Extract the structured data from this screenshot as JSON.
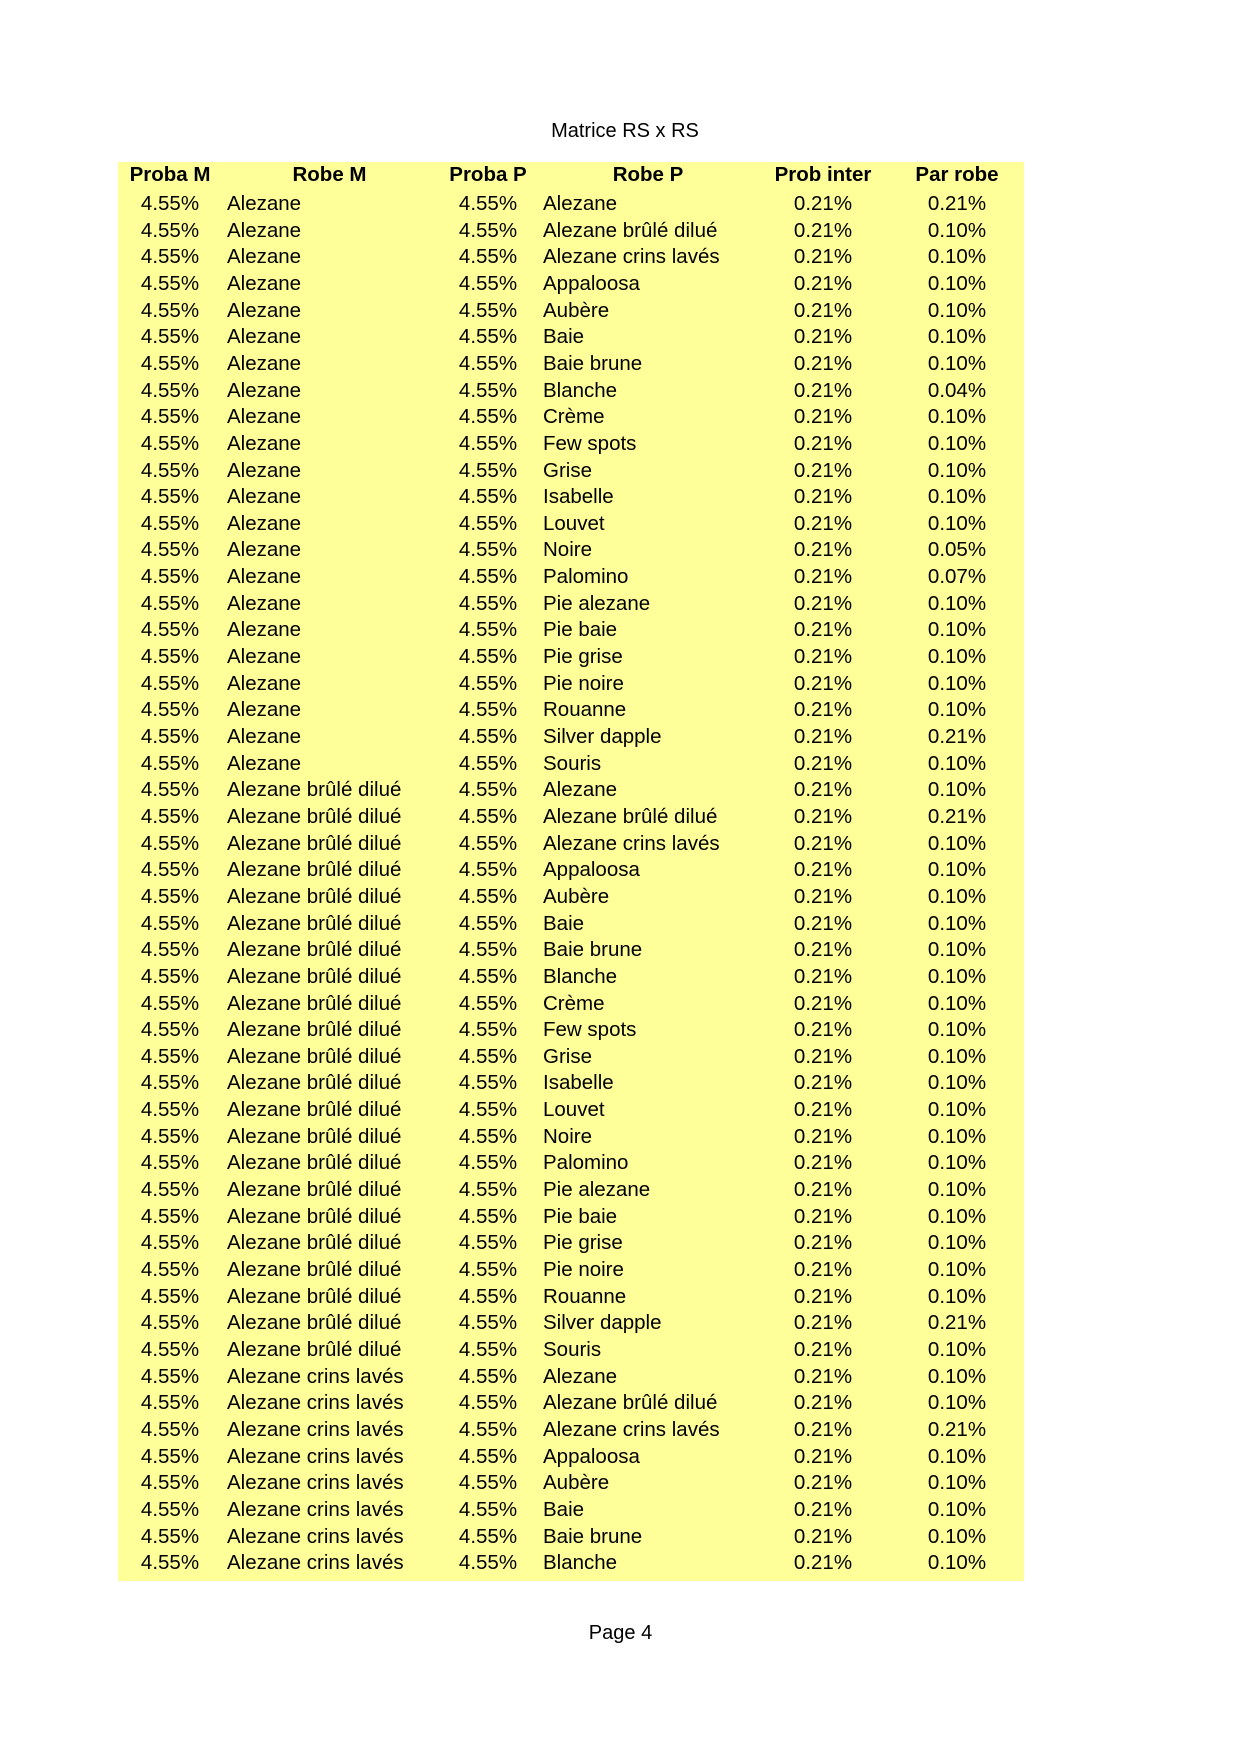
{
  "title": "Matrice RS x RS",
  "footer": "Page 4",
  "colors": {
    "sheet_background": "#ffff99"
  },
  "table": {
    "headers": [
      "Proba M",
      "Robe M",
      "Proba P",
      "Robe P",
      "Prob inter",
      "Par robe"
    ],
    "rows": [
      [
        "4.55%",
        "Alezane",
        "4.55%",
        "Alezane",
        "0.21%",
        "0.21%"
      ],
      [
        "4.55%",
        "Alezane",
        "4.55%",
        "Alezane brûlé dilué",
        "0.21%",
        "0.10%"
      ],
      [
        "4.55%",
        "Alezane",
        "4.55%",
        "Alezane crins lavés",
        "0.21%",
        "0.10%"
      ],
      [
        "4.55%",
        "Alezane",
        "4.55%",
        "Appaloosa",
        "0.21%",
        "0.10%"
      ],
      [
        "4.55%",
        "Alezane",
        "4.55%",
        "Aubère",
        "0.21%",
        "0.10%"
      ],
      [
        "4.55%",
        "Alezane",
        "4.55%",
        "Baie",
        "0.21%",
        "0.10%"
      ],
      [
        "4.55%",
        "Alezane",
        "4.55%",
        "Baie brune",
        "0.21%",
        "0.10%"
      ],
      [
        "4.55%",
        "Alezane",
        "4.55%",
        "Blanche",
        "0.21%",
        "0.04%"
      ],
      [
        "4.55%",
        "Alezane",
        "4.55%",
        "Crème",
        "0.21%",
        "0.10%"
      ],
      [
        "4.55%",
        "Alezane",
        "4.55%",
        "Few spots",
        "0.21%",
        "0.10%"
      ],
      [
        "4.55%",
        "Alezane",
        "4.55%",
        "Grise",
        "0.21%",
        "0.10%"
      ],
      [
        "4.55%",
        "Alezane",
        "4.55%",
        "Isabelle",
        "0.21%",
        "0.10%"
      ],
      [
        "4.55%",
        "Alezane",
        "4.55%",
        "Louvet",
        "0.21%",
        "0.10%"
      ],
      [
        "4.55%",
        "Alezane",
        "4.55%",
        "Noire",
        "0.21%",
        "0.05%"
      ],
      [
        "4.55%",
        "Alezane",
        "4.55%",
        "Palomino",
        "0.21%",
        "0.07%"
      ],
      [
        "4.55%",
        "Alezane",
        "4.55%",
        "Pie alezane",
        "0.21%",
        "0.10%"
      ],
      [
        "4.55%",
        "Alezane",
        "4.55%",
        "Pie baie",
        "0.21%",
        "0.10%"
      ],
      [
        "4.55%",
        "Alezane",
        "4.55%",
        "Pie grise",
        "0.21%",
        "0.10%"
      ],
      [
        "4.55%",
        "Alezane",
        "4.55%",
        "Pie noire",
        "0.21%",
        "0.10%"
      ],
      [
        "4.55%",
        "Alezane",
        "4.55%",
        "Rouanne",
        "0.21%",
        "0.10%"
      ],
      [
        "4.55%",
        "Alezane",
        "4.55%",
        "Silver dapple",
        "0.21%",
        "0.21%"
      ],
      [
        "4.55%",
        "Alezane",
        "4.55%",
        "Souris",
        "0.21%",
        "0.10%"
      ],
      [
        "4.55%",
        "Alezane brûlé dilué",
        "4.55%",
        "Alezane",
        "0.21%",
        "0.10%"
      ],
      [
        "4.55%",
        "Alezane brûlé dilué",
        "4.55%",
        "Alezane brûlé dilué",
        "0.21%",
        "0.21%"
      ],
      [
        "4.55%",
        "Alezane brûlé dilué",
        "4.55%",
        "Alezane crins lavés",
        "0.21%",
        "0.10%"
      ],
      [
        "4.55%",
        "Alezane brûlé dilué",
        "4.55%",
        "Appaloosa",
        "0.21%",
        "0.10%"
      ],
      [
        "4.55%",
        "Alezane brûlé dilué",
        "4.55%",
        "Aubère",
        "0.21%",
        "0.10%"
      ],
      [
        "4.55%",
        "Alezane brûlé dilué",
        "4.55%",
        "Baie",
        "0.21%",
        "0.10%"
      ],
      [
        "4.55%",
        "Alezane brûlé dilué",
        "4.55%",
        "Baie brune",
        "0.21%",
        "0.10%"
      ],
      [
        "4.55%",
        "Alezane brûlé dilué",
        "4.55%",
        "Blanche",
        "0.21%",
        "0.10%"
      ],
      [
        "4.55%",
        "Alezane brûlé dilué",
        "4.55%",
        "Crème",
        "0.21%",
        "0.10%"
      ],
      [
        "4.55%",
        "Alezane brûlé dilué",
        "4.55%",
        "Few spots",
        "0.21%",
        "0.10%"
      ],
      [
        "4.55%",
        "Alezane brûlé dilué",
        "4.55%",
        "Grise",
        "0.21%",
        "0.10%"
      ],
      [
        "4.55%",
        "Alezane brûlé dilué",
        "4.55%",
        "Isabelle",
        "0.21%",
        "0.10%"
      ],
      [
        "4.55%",
        "Alezane brûlé dilué",
        "4.55%",
        "Louvet",
        "0.21%",
        "0.10%"
      ],
      [
        "4.55%",
        "Alezane brûlé dilué",
        "4.55%",
        "Noire",
        "0.21%",
        "0.10%"
      ],
      [
        "4.55%",
        "Alezane brûlé dilué",
        "4.55%",
        "Palomino",
        "0.21%",
        "0.10%"
      ],
      [
        "4.55%",
        "Alezane brûlé dilué",
        "4.55%",
        "Pie alezane",
        "0.21%",
        "0.10%"
      ],
      [
        "4.55%",
        "Alezane brûlé dilué",
        "4.55%",
        "Pie baie",
        "0.21%",
        "0.10%"
      ],
      [
        "4.55%",
        "Alezane brûlé dilué",
        "4.55%",
        "Pie grise",
        "0.21%",
        "0.10%"
      ],
      [
        "4.55%",
        "Alezane brûlé dilué",
        "4.55%",
        "Pie noire",
        "0.21%",
        "0.10%"
      ],
      [
        "4.55%",
        "Alezane brûlé dilué",
        "4.55%",
        "Rouanne",
        "0.21%",
        "0.10%"
      ],
      [
        "4.55%",
        "Alezane brûlé dilué",
        "4.55%",
        "Silver dapple",
        "0.21%",
        "0.21%"
      ],
      [
        "4.55%",
        "Alezane brûlé dilué",
        "4.55%",
        "Souris",
        "0.21%",
        "0.10%"
      ],
      [
        "4.55%",
        "Alezane crins lavés",
        "4.55%",
        "Alezane",
        "0.21%",
        "0.10%"
      ],
      [
        "4.55%",
        "Alezane crins lavés",
        "4.55%",
        "Alezane brûlé dilué",
        "0.21%",
        "0.10%"
      ],
      [
        "4.55%",
        "Alezane crins lavés",
        "4.55%",
        "Alezane crins lavés",
        "0.21%",
        "0.21%"
      ],
      [
        "4.55%",
        "Alezane crins lavés",
        "4.55%",
        "Appaloosa",
        "0.21%",
        "0.10%"
      ],
      [
        "4.55%",
        "Alezane crins lavés",
        "4.55%",
        "Aubère",
        "0.21%",
        "0.10%"
      ],
      [
        "4.55%",
        "Alezane crins lavés",
        "4.55%",
        "Baie",
        "0.21%",
        "0.10%"
      ],
      [
        "4.55%",
        "Alezane crins lavés",
        "4.55%",
        "Baie brune",
        "0.21%",
        "0.10%"
      ],
      [
        "4.55%",
        "Alezane crins lavés",
        "4.55%",
        "Blanche",
        "0.21%",
        "0.10%"
      ]
    ]
  }
}
